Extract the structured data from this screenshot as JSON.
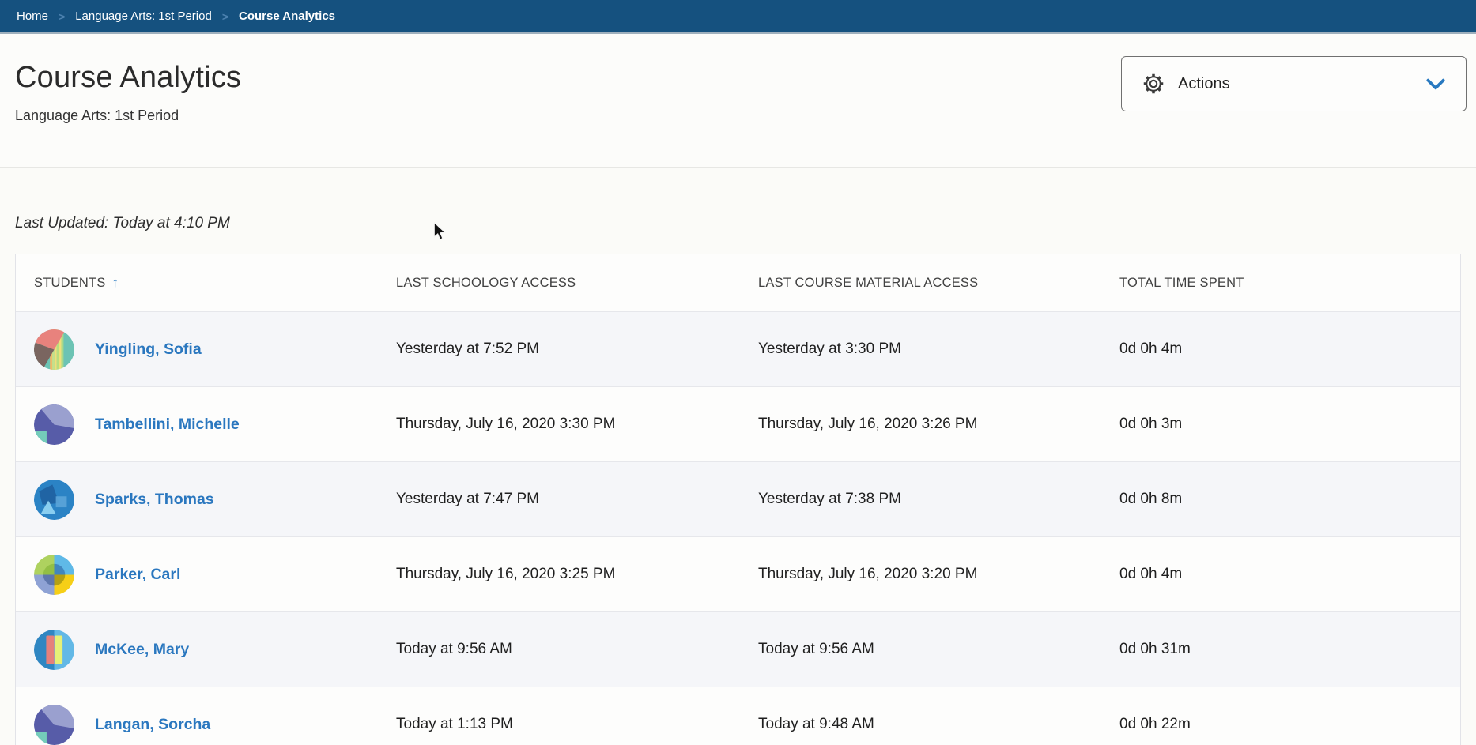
{
  "breadcrumb": {
    "separator": ">",
    "items": [
      {
        "label": "Home"
      },
      {
        "label": "Language Arts: 1st Period"
      },
      {
        "label": "Course Analytics"
      }
    ]
  },
  "header": {
    "title": "Course Analytics",
    "subtitle": "Language Arts: 1st Period",
    "actions_button": {
      "label": "Actions",
      "icon": "gear-icon",
      "chevron_icon": "chevron-down-icon"
    }
  },
  "content": {
    "last_updated": "Last Updated: Today at 4:10 PM"
  },
  "table": {
    "columns": [
      "STUDENTS",
      "LAST SCHOOLOGY ACCESS",
      "LAST COURSE MATERIAL ACCESS",
      "TOTAL TIME SPENT"
    ],
    "sort": {
      "column": "STUDENTS",
      "direction": "ascending",
      "indicator": "↑"
    },
    "rows": [
      {
        "student": "Yingling, Sofia",
        "last_schoology_access": "Yesterday at 7:52 PM",
        "last_course_material_access": "Yesterday at 3:30 PM",
        "total_time_spent": "0d 0h 4m",
        "avatar": "pie-multicolor"
      },
      {
        "student": "Tambellini, Michelle",
        "last_schoology_access": "Thursday, July 16, 2020 3:30 PM",
        "last_course_material_access": "Thursday, July 16, 2020 3:26 PM",
        "total_time_spent": "0d 0h 3m",
        "avatar": "purple-wedge"
      },
      {
        "student": "Sparks, Thomas",
        "last_schoology_access": "Yesterday at 7:47 PM",
        "last_course_material_access": "Yesterday at 7:38 PM",
        "total_time_spent": "0d 0h 8m",
        "avatar": "blue-abstract"
      },
      {
        "student": "Parker, Carl",
        "last_schoology_access": "Thursday, July 16, 2020 3:25 PM",
        "last_course_material_access": "Thursday, July 16, 2020 3:20 PM",
        "total_time_spent": "0d 0h 4m",
        "avatar": "quadrants"
      },
      {
        "student": "McKee, Mary",
        "last_schoology_access": "Today at 9:56 AM",
        "last_course_material_access": "Today at 9:56 AM",
        "total_time_spent": "0d 0h 31m",
        "avatar": "stripes"
      },
      {
        "student": "Langan, Sorcha",
        "last_schoology_access": "Today at 1:13 PM",
        "last_course_material_access": "Today at 9:48 AM",
        "total_time_spent": "0d 0h 22m",
        "avatar": "purple-wedge"
      }
    ]
  },
  "colors": {
    "breadcrumb_bg": "#15517f",
    "link_blue": "#2a77bf",
    "accent_blue": "#2879c0",
    "row_stripe_bg": "#f5f6f9",
    "table_border": "#e2e3e8"
  }
}
